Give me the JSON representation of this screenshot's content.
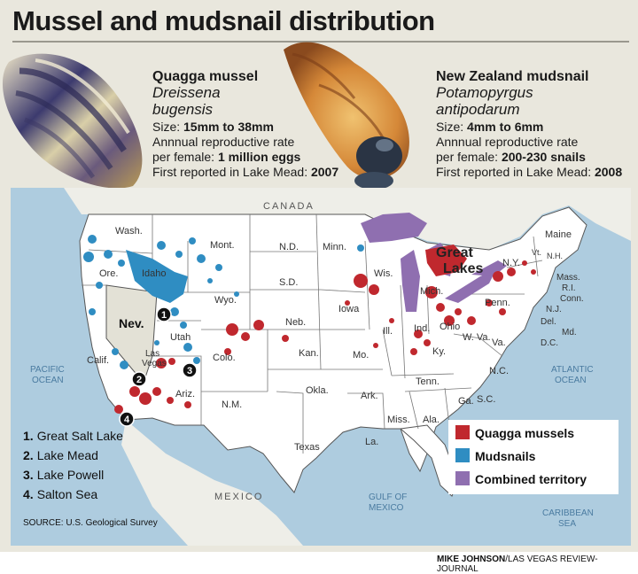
{
  "title": "Mussel and mudsnail distribution",
  "quagga": {
    "name": "Quagga mussel",
    "sci1": "Dreissena",
    "sci2": "bugensis",
    "size_label": "Size: ",
    "size_value": "15mm to 38mm",
    "rate1": "Annnual reproductive rate",
    "rate2_label": "per female: ",
    "rate2_value": "1 million eggs",
    "first_label": "First reported in Lake Mead: ",
    "first_value": "2007"
  },
  "mudsnail": {
    "name": "New Zealand mudsnail",
    "sci1": "Potamopyrgus",
    "sci2": "antipodarum",
    "size_label": "Size: ",
    "size_value": "4mm to 6mm",
    "rate1": "Annnual reproductive rate",
    "rate2_label": "per female: ",
    "rate2_value": "200-230 snails",
    "first_label": "First reported in Lake Mead: ",
    "first_value": "2008"
  },
  "map": {
    "canada": "CANADA",
    "mexico": "MEXICO",
    "pacific1": "PACIFIC",
    "pacific2": "OCEAN",
    "atlantic1": "ATLANTIC",
    "atlantic2": "OCEAN",
    "gulf1": "GULF OF",
    "gulf2": "MEXICO",
    "caribbean1": "CARIBBEAN",
    "caribbean2": "SEA",
    "great1": "Great",
    "great2": "Lakes",
    "states": {
      "wash": "Wash.",
      "ore": "Ore.",
      "calif": "Calif.",
      "idaho": "Idaho",
      "nev": "Nev.",
      "mont": "Mont.",
      "wyo": "Wyo.",
      "utah": "Utah",
      "arizona": "Ariz.",
      "colo": "Colo.",
      "nm": "N.M.",
      "nd": "N.D.",
      "sd": "S.D.",
      "neb": "Neb.",
      "kan": "Kan.",
      "okla": "Okla.",
      "texas": "Texas",
      "minn": "Minn.",
      "iowa": "Iowa",
      "mo": "Mo.",
      "ark": "Ark.",
      "la": "La.",
      "wis": "Wis.",
      "ill": "Ill.",
      "miss": "Miss.",
      "mich": "Mich.",
      "ind": "Ind.",
      "ohio": "Ohio",
      "ky": "Ky.",
      "tenn": "Tenn.",
      "ala": "Ala.",
      "ga": "Ga.",
      "wva": "W. Va.",
      "va": "Va.",
      "nc": "N.C.",
      "sc": "S.C.",
      "penn": "Penn.",
      "ny": "N.Y.",
      "vt": "Vt.",
      "nh": "N.H.",
      "maine": "Maine",
      "mass": "Mass.",
      "ri": "R.I.",
      "conn": "Conn.",
      "nj": "N.J.",
      "del": "Del.",
      "md": "Md.",
      "dc": "D.C.",
      "lasvegas1": "Las",
      "lasvegas2": "Vegas"
    },
    "markers": [
      "1",
      "2",
      "3",
      "4"
    ]
  },
  "places": [
    {
      "num": "1.",
      "name": "Great Salt Lake"
    },
    {
      "num": "2.",
      "name": "Lake Mead"
    },
    {
      "num": "3.",
      "name": "Lake Powell"
    },
    {
      "num": "4.",
      "name": "Salton Sea"
    }
  ],
  "legend": [
    {
      "label": "Quagga mussels",
      "color": "#c0282e"
    },
    {
      "label": "Mudsnails",
      "color": "#2f8dc2"
    },
    {
      "label": "Combined territory",
      "color": "#8f6fb0"
    }
  ],
  "source": "SOURCE: U.S. Geological Survey",
  "credit_name": "MIKE JOHNSON",
  "credit_org": "/LAS VEGAS REVIEW-JOURNAL",
  "colors": {
    "quagga": "#c0282e",
    "mudsnail": "#2f8dc2",
    "combined": "#8f6fb0",
    "water": "#aeccdf",
    "land": "#ffffff"
  }
}
